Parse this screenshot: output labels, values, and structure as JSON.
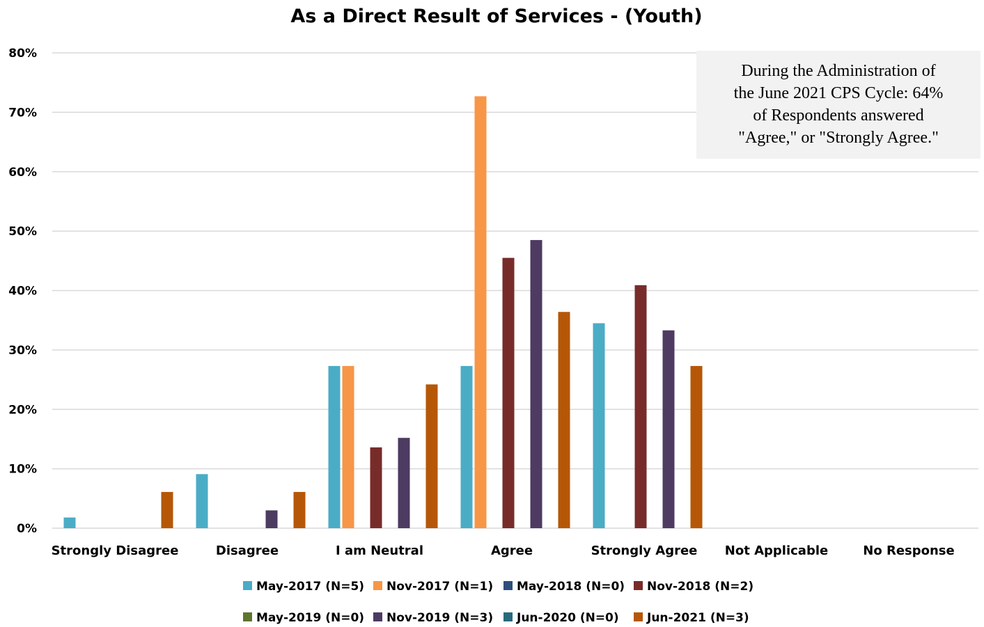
{
  "chart_data": {
    "type": "bar",
    "title": "As a Direct Result of Services - (Youth)",
    "xlabel": "",
    "ylabel": "",
    "ylim": [
      0,
      80
    ],
    "yticks": [
      "0%",
      "10%",
      "20%",
      "30%",
      "40%",
      "50%",
      "60%",
      "70%",
      "80%"
    ],
    "grid": true,
    "legend_position": "bottom",
    "categories": [
      "Strongly Disagree",
      "Disagree",
      "I am Neutral",
      "Agree",
      "Strongly Agree",
      "Not Applicable",
      "No Response"
    ],
    "series": [
      {
        "name": "May-2017 (N=5)",
        "color": "#4bacc6",
        "values": [
          1.8,
          9.1,
          27.3,
          27.3,
          34.5,
          0,
          0
        ]
      },
      {
        "name": "Nov-2017 (N=1)",
        "color": "#f79646",
        "values": [
          0,
          0,
          27.3,
          72.7,
          0,
          0,
          0
        ]
      },
      {
        "name": "May-2018 (N=0)",
        "color": "#2e4f7c",
        "values": [
          0,
          0,
          0,
          0,
          0,
          0,
          0
        ]
      },
      {
        "name": "Nov-2018 (N=2)",
        "color": "#772c2a",
        "values": [
          0,
          0,
          13.6,
          45.5,
          40.9,
          0,
          0
        ]
      },
      {
        "name": "May-2019 (N=0)",
        "color": "#5f7530",
        "values": [
          0,
          0,
          0,
          0,
          0,
          0,
          0
        ]
      },
      {
        "name": "Nov-2019 (N=3)",
        "color": "#4d3b62",
        "values": [
          0,
          3.0,
          15.2,
          48.5,
          33.3,
          0,
          0
        ]
      },
      {
        "name": "Jun-2020 (N=0)",
        "color": "#276a7c",
        "values": [
          0,
          0,
          0,
          0,
          0,
          0,
          0
        ]
      },
      {
        "name": "Jun-2021 (N=3)",
        "color": "#b65708",
        "values": [
          6.1,
          6.1,
          24.2,
          36.4,
          27.3,
          0,
          0
        ]
      }
    ],
    "annotation": {
      "lines": [
        "During the Administration of",
        "the June 2021 CPS Cycle: 64%",
        "of Respondents answered",
        "\"Agree,\" or \"Strongly Agree.\""
      ],
      "background": "#f2f2f2"
    }
  }
}
